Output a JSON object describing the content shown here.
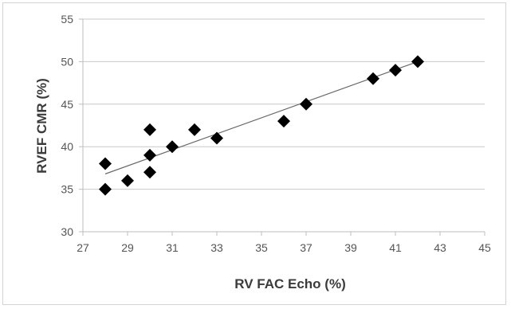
{
  "chart_data": {
    "type": "scatter",
    "title": "",
    "xlabel": "RV FAC Echo (%)",
    "ylabel": "RVEF CMR (%)",
    "xlim": [
      27,
      45
    ],
    "ylim": [
      30,
      55
    ],
    "x_ticks": [
      "27",
      "29",
      "31",
      "33",
      "35",
      "37",
      "39",
      "41",
      "43",
      "45"
    ],
    "y_ticks": [
      "30",
      "35",
      "40",
      "45",
      "50",
      "55"
    ],
    "grid": "horizontal",
    "legend": "none",
    "marker": "diamond",
    "marker_color": "#000000",
    "points": [
      {
        "x": 28,
        "y": 38
      },
      {
        "x": 28,
        "y": 35
      },
      {
        "x": 29,
        "y": 36
      },
      {
        "x": 30,
        "y": 42
      },
      {
        "x": 30,
        "y": 39
      },
      {
        "x": 30,
        "y": 37
      },
      {
        "x": 31,
        "y": 40
      },
      {
        "x": 32,
        "y": 42
      },
      {
        "x": 33,
        "y": 41
      },
      {
        "x": 36,
        "y": 43
      },
      {
        "x": 37,
        "y": 45
      },
      {
        "x": 40,
        "y": 48
      },
      {
        "x": 41,
        "y": 49
      },
      {
        "x": 42,
        "y": 50
      }
    ],
    "trendline": {
      "type": "linear",
      "x_start": 28,
      "y_start": 36.8,
      "x_end": 42,
      "y_end": 50.0
    },
    "colors": {
      "grid": "#c8c8c8",
      "axis": "#bdbdbd",
      "trendline": "#6a6a6a"
    }
  }
}
